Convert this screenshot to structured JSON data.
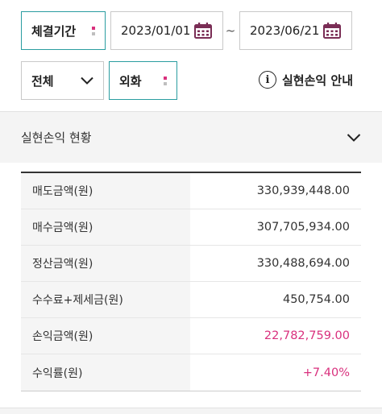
{
  "filters": {
    "period_label": "체결기간",
    "start_date": "2023/01/01",
    "separator": "~",
    "end_date": "2023/06/21",
    "scope_label": "전체",
    "currency_label": "외화",
    "info_link_label": "실현손익 안내",
    "info_icon_glyph": "i"
  },
  "summary": {
    "title": "실현손익 현황",
    "rows": [
      {
        "label": "매도금액(원)",
        "value": "330,939,448.00",
        "color": "#333333"
      },
      {
        "label": "매수금액(원)",
        "value": "307,705,934.00",
        "color": "#333333"
      },
      {
        "label": "정산금액(원)",
        "value": "330,488,694.00",
        "color": "#333333"
      },
      {
        "label": "수수료+제세금(원)",
        "value": "450,754.00",
        "color": "#333333"
      },
      {
        "label": "손익금액(원)",
        "value": "22,782,759.00",
        "color": "#d9307d"
      },
      {
        "label": "수익률(원)",
        "value": "+7.40%",
        "color": "#d9307d"
      }
    ]
  },
  "colors": {
    "accent_teal": "#2a9da0",
    "accent_pink": "#d9307d",
    "calendar_icon": "#7a2d55"
  },
  "icons": {
    "calendar": "calendar-icon",
    "chevron": "chevron-down-icon",
    "info": "info-circle-icon"
  }
}
